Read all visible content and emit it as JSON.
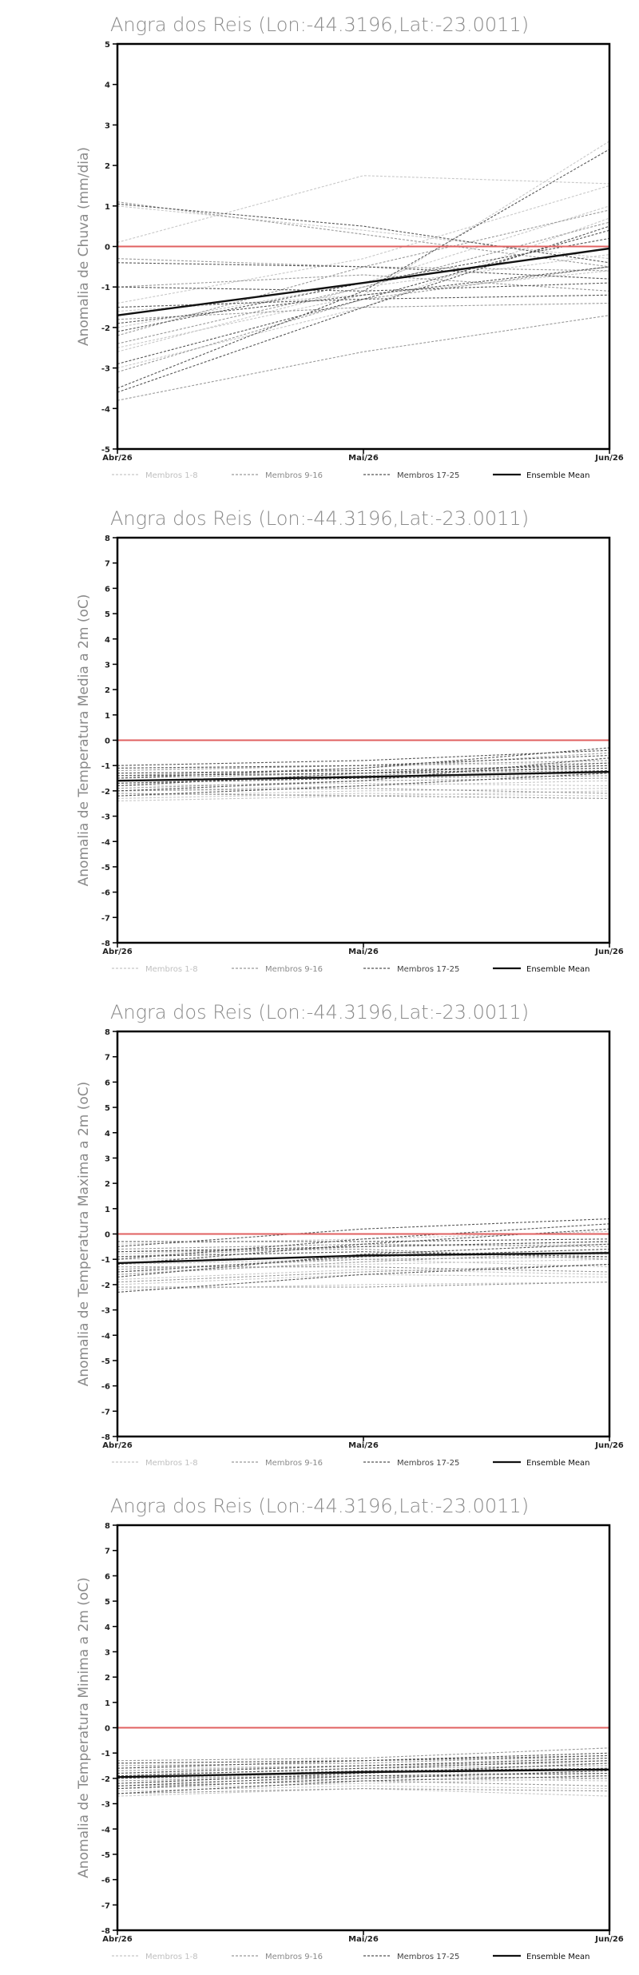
{
  "chart_data": [
    {
      "type": "line",
      "title": "Angra dos Reis (Lon:-44.3196,Lat:-23.0011)",
      "ylabel": "Anomalia de Chuva (mm/dia)",
      "categories": [
        "Abr/26",
        "Mai/26",
        "Jun/26"
      ],
      "ylim": [
        -5,
        5
      ],
      "yticks": [
        -5,
        -4,
        -3,
        -2,
        -1,
        0,
        1,
        2,
        3,
        4,
        5
      ],
      "zero_line_color": "#e06060",
      "legend": [
        "Membros 1-8",
        "Membros 9-16",
        "Membros 17-25",
        "Ensemble Mean"
      ],
      "series": [
        {
          "group": 0,
          "values": [
            0.1,
            1.75,
            1.55
          ]
        },
        {
          "group": 0,
          "values": [
            -1.4,
            -0.3,
            1.5
          ]
        },
        {
          "group": 0,
          "values": [
            -2.5,
            -1.2,
            2.6
          ]
        },
        {
          "group": 0,
          "values": [
            -2.0,
            -0.9,
            1.0
          ]
        },
        {
          "group": 0,
          "values": [
            -2.6,
            -1.0,
            -0.2
          ]
        },
        {
          "group": 0,
          "values": [
            -1.6,
            -1.2,
            -0.6
          ]
        },
        {
          "group": 0,
          "values": [
            1.0,
            0.4,
            -0.3
          ]
        },
        {
          "group": 0,
          "values": [
            -3.0,
            -1.5,
            0.7
          ]
        },
        {
          "group": 1,
          "values": [
            -3.1,
            -1.3,
            -0.5
          ]
        },
        {
          "group": 1,
          "values": [
            -3.8,
            -2.6,
            -1.7
          ]
        },
        {
          "group": 1,
          "values": [
            -2.2,
            -0.5,
            0.9
          ]
        },
        {
          "group": 1,
          "values": [
            -1.8,
            -1.5,
            -1.4
          ]
        },
        {
          "group": 1,
          "values": [
            -0.3,
            -0.5,
            -0.6
          ]
        },
        {
          "group": 1,
          "values": [
            1.1,
            0.3,
            -0.5
          ]
        },
        {
          "group": 1,
          "values": [
            -2.4,
            -1.0,
            0.6
          ]
        },
        {
          "group": 1,
          "values": [
            -1.0,
            -0.7,
            -1.1
          ]
        },
        {
          "group": 2,
          "values": [
            -3.5,
            -1.1,
            2.4
          ]
        },
        {
          "group": 2,
          "values": [
            -1.9,
            -1.2,
            -0.5
          ]
        },
        {
          "group": 2,
          "values": [
            -0.4,
            -0.5,
            -0.8
          ]
        },
        {
          "group": 2,
          "values": [
            -2.9,
            -1.3,
            0.4
          ]
        },
        {
          "group": 2,
          "values": [
            -1.0,
            -1.1,
            -0.9
          ]
        },
        {
          "group": 2,
          "values": [
            1.05,
            0.5,
            -0.4
          ]
        },
        {
          "group": 2,
          "values": [
            -3.6,
            -1.5,
            0.5
          ]
        },
        {
          "group": 2,
          "values": [
            -1.5,
            -1.3,
            -1.2
          ]
        },
        {
          "group": 2,
          "values": [
            -2.1,
            -0.9,
            0.2
          ]
        },
        {
          "group": 3,
          "values": [
            -1.7,
            -0.9,
            -0.05
          ]
        }
      ]
    },
    {
      "type": "line",
      "title": "Angra dos Reis (Lon:-44.3196,Lat:-23.0011)",
      "ylabel": "Anomalia de Temperatura Media a 2m (oC)",
      "categories": [
        "Abr/26",
        "Mai/26",
        "Jun/26"
      ],
      "ylim": [
        -8,
        8
      ],
      "yticks": [
        -8,
        -7,
        -6,
        -5,
        -4,
        -3,
        -2,
        -1,
        0,
        1,
        2,
        3,
        4,
        5,
        6,
        7,
        8
      ],
      "zero_line_color": "#e06060",
      "legend": [
        "Membros 1-8",
        "Membros 9-16",
        "Membros 17-25",
        "Ensemble Mean"
      ],
      "series": [
        {
          "group": 0,
          "values": [
            -2.4,
            -2.2,
            -2.0
          ]
        },
        {
          "group": 0,
          "values": [
            -2.0,
            -1.8,
            -1.6
          ]
        },
        {
          "group": 0,
          "values": [
            -1.6,
            -1.5,
            -1.3
          ]
        },
        {
          "group": 0,
          "values": [
            -2.2,
            -2.0,
            -1.9
          ]
        },
        {
          "group": 0,
          "values": [
            -1.1,
            -1.0,
            -0.9
          ]
        },
        {
          "group": 0,
          "values": [
            -1.8,
            -1.7,
            -1.8
          ]
        },
        {
          "group": 0,
          "values": [
            -1.3,
            -1.2,
            -1.1
          ]
        },
        {
          "group": 0,
          "values": [
            -2.3,
            -2.1,
            -2.2
          ]
        },
        {
          "group": 1,
          "values": [
            -1.7,
            -1.4,
            -1.0
          ]
        },
        {
          "group": 1,
          "values": [
            -2.1,
            -2.2,
            -2.3
          ]
        },
        {
          "group": 1,
          "values": [
            -1.5,
            -1.3,
            -1.2
          ]
        },
        {
          "group": 1,
          "values": [
            -1.9,
            -1.6,
            -1.5
          ]
        },
        {
          "group": 1,
          "values": [
            -1.2,
            -1.0,
            -0.8
          ]
        },
        {
          "group": 1,
          "values": [
            -2.0,
            -1.9,
            -2.1
          ]
        },
        {
          "group": 1,
          "values": [
            -1.4,
            -1.1,
            -0.5
          ]
        },
        {
          "group": 1,
          "values": [
            -1.6,
            -1.5,
            -1.4
          ]
        },
        {
          "group": 2,
          "values": [
            -1.0,
            -0.8,
            -0.4
          ]
        },
        {
          "group": 2,
          "values": [
            -1.5,
            -1.1,
            -0.3
          ]
        },
        {
          "group": 2,
          "values": [
            -2.0,
            -1.6,
            -0.7
          ]
        },
        {
          "group": 2,
          "values": [
            -1.3,
            -1.2,
            -1.0
          ]
        },
        {
          "group": 2,
          "values": [
            -1.8,
            -1.3,
            -0.9
          ]
        },
        {
          "group": 2,
          "values": [
            -2.2,
            -1.8,
            -1.3
          ]
        },
        {
          "group": 2,
          "values": [
            -1.1,
            -1.0,
            -0.6
          ]
        },
        {
          "group": 2,
          "values": [
            -1.7,
            -1.5,
            -1.2
          ]
        },
        {
          "group": 2,
          "values": [
            -1.4,
            -1.3,
            -1.1
          ]
        },
        {
          "group": 3,
          "values": [
            -1.6,
            -1.45,
            -1.25
          ]
        }
      ]
    },
    {
      "type": "line",
      "title": "Angra dos Reis (Lon:-44.3196,Lat:-23.0011)",
      "ylabel": "Anomalia de Temperatura Maxima a 2m (oC)",
      "categories": [
        "Abr/26",
        "Mai/26",
        "Jun/26"
      ],
      "ylim": [
        -8,
        8
      ],
      "yticks": [
        -8,
        -7,
        -6,
        -5,
        -4,
        -3,
        -2,
        -1,
        0,
        1,
        2,
        3,
        4,
        5,
        6,
        7,
        8
      ],
      "zero_line_color": "#e06060",
      "legend": [
        "Membros 1-8",
        "Membros 9-16",
        "Membros 17-25",
        "Ensemble Mean"
      ],
      "series": [
        {
          "group": 0,
          "values": [
            -2.2,
            -2.0,
            -1.9
          ]
        },
        {
          "group": 0,
          "values": [
            -1.5,
            -1.2,
            -1.0
          ]
        },
        {
          "group": 0,
          "values": [
            -0.8,
            -0.5,
            -0.4
          ]
        },
        {
          "group": 0,
          "values": [
            -1.8,
            -1.4,
            -1.6
          ]
        },
        {
          "group": 0,
          "values": [
            -0.4,
            -0.2,
            0.1
          ]
        },
        {
          "group": 0,
          "values": [
            -1.2,
            -1.0,
            -1.3
          ]
        },
        {
          "group": 0,
          "values": [
            -2.0,
            -1.6,
            -1.7
          ]
        },
        {
          "group": 0,
          "values": [
            -1.0,
            -0.9,
            -0.8
          ]
        },
        {
          "group": 1,
          "values": [
            -1.6,
            -1.1,
            -0.7
          ]
        },
        {
          "group": 1,
          "values": [
            -0.6,
            -0.4,
            -0.5
          ]
        },
        {
          "group": 1,
          "values": [
            -1.3,
            -1.3,
            -1.5
          ]
        },
        {
          "group": 1,
          "values": [
            -2.1,
            -2.1,
            -1.9
          ]
        },
        {
          "group": 1,
          "values": [
            -0.9,
            -0.5,
            -0.3
          ]
        },
        {
          "group": 1,
          "values": [
            -1.4,
            -1.0,
            -0.9
          ]
        },
        {
          "group": 1,
          "values": [
            -0.7,
            -0.6,
            -1.0
          ]
        },
        {
          "group": 1,
          "values": [
            -1.9,
            -1.5,
            -1.2
          ]
        },
        {
          "group": 2,
          "values": [
            -0.5,
            0.2,
            0.6
          ]
        },
        {
          "group": 2,
          "values": [
            -1.0,
            -0.2,
            0.4
          ]
        },
        {
          "group": 2,
          "values": [
            -1.5,
            -0.9,
            -0.6
          ]
        },
        {
          "group": 2,
          "values": [
            -0.3,
            -0.3,
            -0.2
          ]
        },
        {
          "group": 2,
          "values": [
            -1.7,
            -0.8,
            -0.4
          ]
        },
        {
          "group": 2,
          "values": [
            -0.9,
            -0.7,
            -0.9
          ]
        },
        {
          "group": 2,
          "values": [
            -1.2,
            -0.4,
            0.2
          ]
        },
        {
          "group": 2,
          "values": [
            -2.3,
            -1.6,
            -1.2
          ]
        },
        {
          "group": 2,
          "values": [
            -0.7,
            -0.5,
            -0.3
          ]
        },
        {
          "group": 3,
          "values": [
            -1.15,
            -0.85,
            -0.75
          ]
        }
      ]
    },
    {
      "type": "line",
      "title": "Angra dos Reis (Lon:-44.3196,Lat:-23.0011)",
      "ylabel": "Anomalia de Temperatura Minima a 2m (oC)",
      "categories": [
        "Abr/26",
        "Mai/26",
        "Jun/26"
      ],
      "ylim": [
        -8,
        8
      ],
      "yticks": [
        -8,
        -7,
        -6,
        -5,
        -4,
        -3,
        -2,
        -1,
        0,
        1,
        2,
        3,
        4,
        5,
        6,
        7,
        8
      ],
      "zero_line_color": "#e06060",
      "legend": [
        "Membros 1-8",
        "Membros 9-16",
        "Membros 17-25",
        "Ensemble Mean"
      ],
      "series": [
        {
          "group": 0,
          "values": [
            -2.5,
            -2.3,
            -2.4
          ]
        },
        {
          "group": 0,
          "values": [
            -2.0,
            -1.8,
            -1.6
          ]
        },
        {
          "group": 0,
          "values": [
            -1.4,
            -1.3,
            -1.2
          ]
        },
        {
          "group": 0,
          "values": [
            -2.7,
            -2.4,
            -2.7
          ]
        },
        {
          "group": 0,
          "values": [
            -1.8,
            -1.7,
            -1.9
          ]
        },
        {
          "group": 0,
          "values": [
            -2.2,
            -2.0,
            -2.1
          ]
        },
        {
          "group": 0,
          "values": [
            -1.6,
            -1.5,
            -1.4
          ]
        },
        {
          "group": 0,
          "values": [
            -2.4,
            -2.2,
            -2.0
          ]
        },
        {
          "group": 1,
          "values": [
            -1.3,
            -1.2,
            -0.8
          ]
        },
        {
          "group": 1,
          "values": [
            -2.1,
            -1.9,
            -1.8
          ]
        },
        {
          "group": 1,
          "values": [
            -1.7,
            -1.5,
            -1.3
          ]
        },
        {
          "group": 1,
          "values": [
            -2.6,
            -2.4,
            -2.5
          ]
        },
        {
          "group": 1,
          "values": [
            -1.9,
            -1.6,
            -1.5
          ]
        },
        {
          "group": 1,
          "values": [
            -2.3,
            -2.1,
            -2.3
          ]
        },
        {
          "group": 1,
          "values": [
            -1.5,
            -1.4,
            -1.1
          ]
        },
        {
          "group": 1,
          "values": [
            -2.0,
            -1.9,
            -2.0
          ]
        },
        {
          "group": 2,
          "values": [
            -1.6,
            -1.3,
            -1.0
          ]
        },
        {
          "group": 2,
          "values": [
            -2.2,
            -1.8,
            -1.4
          ]
        },
        {
          "group": 2,
          "values": [
            -1.8,
            -1.5,
            -1.2
          ]
        },
        {
          "group": 2,
          "values": [
            -2.4,
            -2.0,
            -1.7
          ]
        },
        {
          "group": 2,
          "values": [
            -1.4,
            -1.3,
            -1.1
          ]
        },
        {
          "group": 2,
          "values": [
            -2.0,
            -1.7,
            -1.6
          ]
        },
        {
          "group": 2,
          "values": [
            -2.6,
            -2.1,
            -1.9
          ]
        },
        {
          "group": 2,
          "values": [
            -1.9,
            -1.6,
            -1.3
          ]
        },
        {
          "group": 2,
          "values": [
            -2.3,
            -1.9,
            -1.8
          ]
        },
        {
          "group": 3,
          "values": [
            -1.95,
            -1.75,
            -1.65
          ]
        }
      ]
    }
  ]
}
